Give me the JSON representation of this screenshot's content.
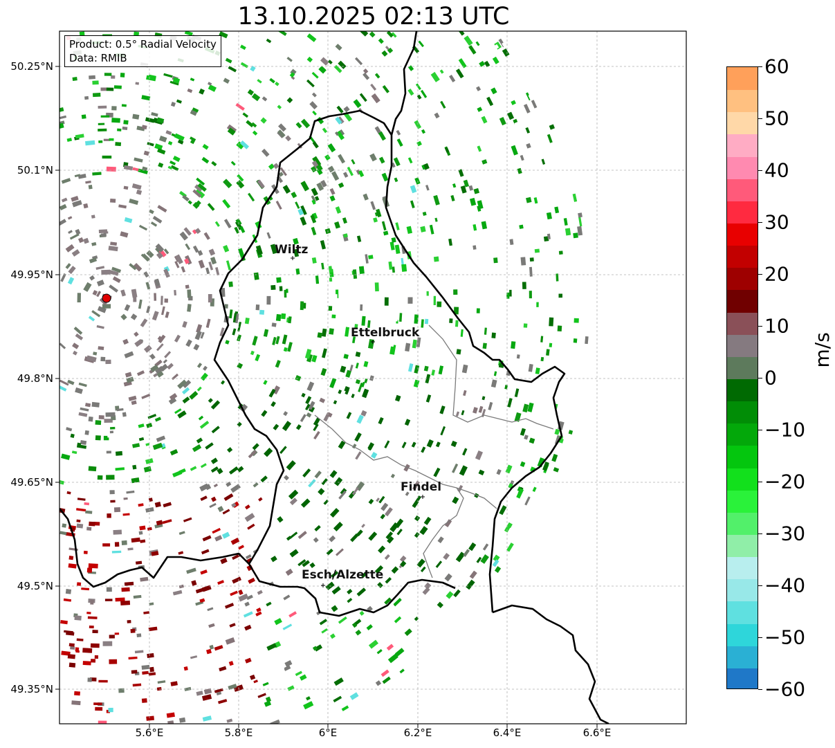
{
  "title": "13.10.2025 02:13 UTC",
  "info": {
    "product": "Product: 0.5° Radial Velocity",
    "data": "Data: RMIB"
  },
  "axes": {
    "y_labels": [
      "50.25°N",
      "50.1°N",
      "49.95°N",
      "49.8°N",
      "49.65°N",
      "49.5°N",
      "49.35°N"
    ],
    "x_labels": [
      "5.6°E",
      "5.8°E",
      "6°E",
      "6.2°E",
      "6.4°E",
      "6.6°E"
    ]
  },
  "cities": [
    {
      "name": "Wiltz"
    },
    {
      "name": "Ettelbruck"
    },
    {
      "name": "Findel"
    },
    {
      "name": "Esch/Alzette"
    }
  ],
  "colorbar": {
    "label": "m/s",
    "ticks": [
      "60",
      "50",
      "40",
      "30",
      "20",
      "10",
      "0",
      "−10",
      "−20",
      "−30",
      "−40",
      "−50",
      "−60"
    ],
    "min": -60,
    "max": 60,
    "colors": [
      "#1f78c8",
      "#2ab0d4",
      "#2ed6da",
      "#5fe0e0",
      "#98e8e8",
      "#b8eeee",
      "#90eea8",
      "#52f06a",
      "#2af23a",
      "#12e01c",
      "#04c60e",
      "#03a80a",
      "#018d06",
      "#006a02",
      "#5d7a5c",
      "#857a80",
      "#8a5058",
      "#700000",
      "#9e0000",
      "#c20000",
      "#e80000",
      "#ff2a40",
      "#ff5a7a",
      "#ff8ab0",
      "#ffacc4",
      "#ffd8a8",
      "#ffc080",
      "#ffa05a"
    ]
  },
  "colors": {
    "border": "#000000",
    "grid": "#b0b0b0",
    "radar_site": "#e00000"
  }
}
